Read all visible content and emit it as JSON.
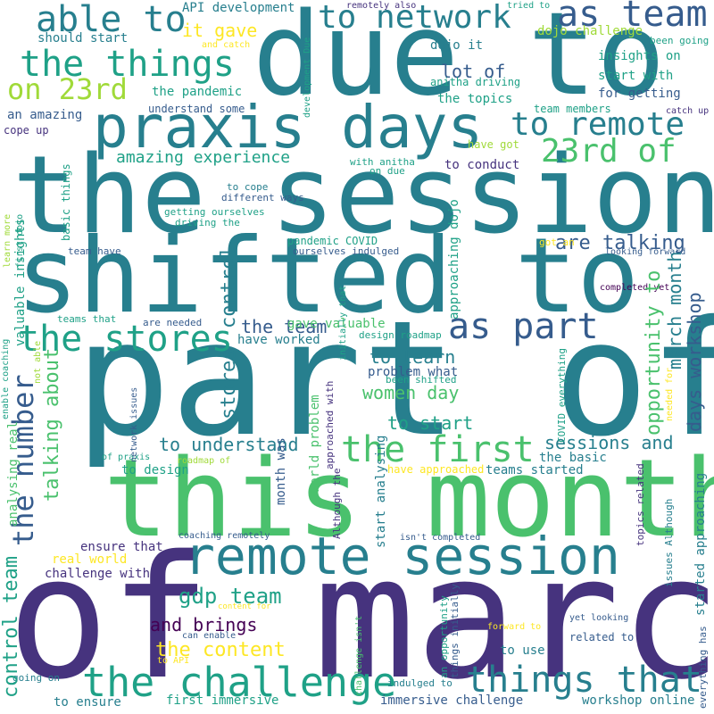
{
  "words": {
    "w01": "due to",
    "w02": "the session",
    "w03": "shifted to",
    "w04": "part of",
    "w05": "this month",
    "w06": "of march",
    "w07": "praxis days",
    "w08": "remote session",
    "w09": "the challenge",
    "w10": "things that",
    "w11": "the first",
    "w12": "as part",
    "w13": "the stores",
    "w14": "the number",
    "w15": "able to",
    "w16": "to network",
    "w17": "as team",
    "w18": "the things",
    "w19": "on 23rd",
    "w20": "to remote",
    "w21": "23rd of",
    "w22": "amazing experience",
    "w23": "it gave",
    "w24": "lot of",
    "w25": "dojo it",
    "w26": "the topics",
    "w27": "the pandemic",
    "w28": "should start",
    "w29": "API development",
    "w30": "dojo challenge",
    "w31": "insights on",
    "w32": "start with",
    "w33": "for getting",
    "w34": "team members",
    "w35": "an amazing",
    "w36": "understand some",
    "w37": "anitha driving",
    "w38": "are talking",
    "w39": "the team",
    "w40": "to learn",
    "w41": "women day",
    "w42": "to start",
    "w43": "to understand",
    "w44": "sessions and",
    "w45": "the basic",
    "w46": "gdp team",
    "w47": "and brings",
    "w48": "the content",
    "w49": "to use",
    "w50": "first immersive",
    "w51": "immersive challenge",
    "w52": "workshop online",
    "w53": "to ensure",
    "w54": "challenge with",
    "w55": "ensure that",
    "w56": "real world",
    "w57": "control team",
    "w58": "talking about",
    "w59": "control",
    "w60": "stores",
    "w61": "gave valuable",
    "w62": "have worked",
    "w63": "problem what",
    "w64": "been shifted",
    "w65": "teams started",
    "w66": "to design",
    "w67": "month was",
    "w68": "opportunity to",
    "w69": "march month",
    "w70": "days workshop",
    "w71": "started approaching",
    "w72": "approaching dojo",
    "w73": "pandemic COVID",
    "w74": "ourselves indulged",
    "w75": "getting ourselves",
    "w76": "driving the",
    "w77": "to conduct",
    "w78": "with anitha",
    "w79": "on due",
    "w80": "have got",
    "w81": "catch up",
    "w82": "cope up",
    "w83": "basic things",
    "w84": "valuable insights",
    "w85": "to cope",
    "w86": "different ways",
    "w87": "team have",
    "w88": "learn more",
    "w89": "first dojo",
    "w90": "got an",
    "w91": "looking forward",
    "w92": "completed yet",
    "w93": "teams that",
    "w94": "are needed",
    "w95": "design roadmap",
    "w96": "world problem",
    "w97": "approached with",
    "w98": "initially that",
    "w99": "network issues",
    "w100": "analysing real",
    "w101": "not able",
    "w102": "enable coaching",
    "w103": "of praxis",
    "w104": "roadmap of",
    "w105": "Although the",
    "w106": "start analysing",
    "w107": "challenge isn't",
    "w108": "isn't completed",
    "w109": "coaching remotely",
    "w110": "an opportunity",
    "w111": "things initially",
    "w112": "topics related",
    "w113": "issues Although",
    "w114": "everything has",
    "w115": "related to",
    "w116": "yet looking",
    "w117": "forward to",
    "w118": "can enable",
    "w119": "content for",
    "w120": "to API",
    "w121": "going on",
    "w122": "indulged to",
    "w123": "COVID everything",
    "w124": "needed for",
    "w125": "have approached",
    "w126": "remotely also",
    "w127": "tried to",
    "w128": "and catch",
    "w129": "development Due",
    "w130": "been going"
  }
}
